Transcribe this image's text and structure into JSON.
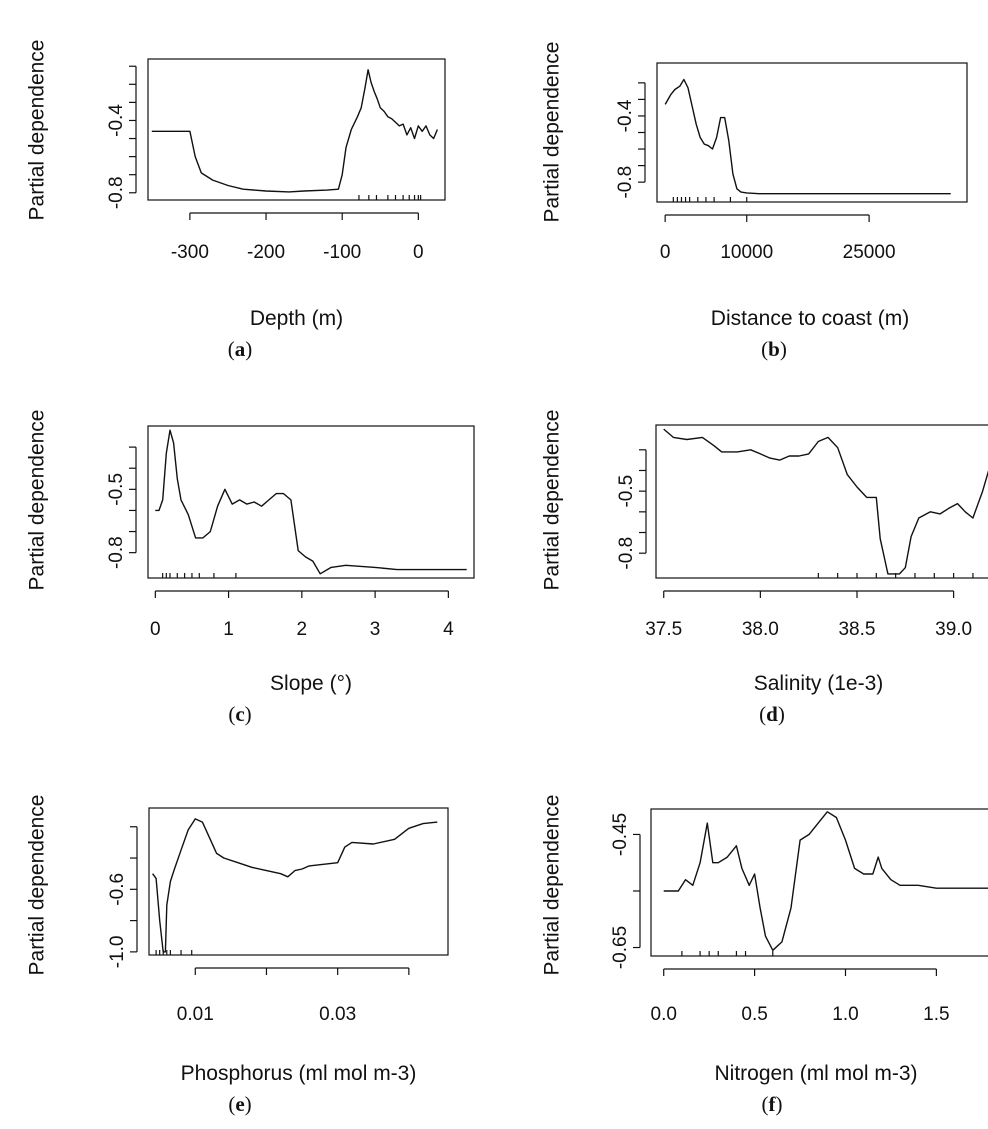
{
  "chart_data": [
    {
      "panel": "a",
      "type": "line",
      "xlabel": "Depth (m)",
      "ylabel": "Partial dependence",
      "xlim": [
        -355,
        35
      ],
      "ylim": [
        -0.84,
        -0.06
      ],
      "xticks": [
        -300,
        -200,
        -100,
        0
      ],
      "yticks": [
        -0.8,
        -0.7,
        -0.6,
        -0.5,
        -0.4,
        -0.3,
        -0.2,
        -0.1
      ],
      "ytick_labels": {
        "-0.8": "-0.8",
        "-0.4": "-0.4"
      },
      "rug": [
        -78,
        -65,
        -55,
        -40,
        -30,
        -20,
        -12,
        -5,
        0,
        3
      ],
      "x": [
        -350,
        -300,
        -293,
        -285,
        -270,
        -250,
        -230,
        -200,
        -170,
        -150,
        -120,
        -105,
        -100,
        -95,
        -88,
        -80,
        -75,
        -70,
        -66,
        -62,
        -58,
        -54,
        -50,
        -45,
        -40,
        -35,
        -30,
        -25,
        -20,
        -15,
        -10,
        -5,
        0,
        5,
        10,
        15,
        20,
        25
      ],
      "y": [
        -0.46,
        -0.46,
        -0.6,
        -0.69,
        -0.73,
        -0.76,
        -0.78,
        -0.79,
        -0.795,
        -0.79,
        -0.785,
        -0.78,
        -0.7,
        -0.55,
        -0.45,
        -0.38,
        -0.33,
        -0.22,
        -0.12,
        -0.19,
        -0.24,
        -0.28,
        -0.33,
        -0.35,
        -0.38,
        -0.39,
        -0.41,
        -0.43,
        -0.42,
        -0.48,
        -0.44,
        -0.5,
        -0.43,
        -0.46,
        -0.43,
        -0.48,
        -0.5,
        -0.45
      ]
    },
    {
      "panel": "b",
      "type": "line",
      "xlabel": "Distance to coast (m)",
      "ylabel": "Partial dependence",
      "xlim": [
        -1000,
        37000
      ],
      "ylim": [
        -0.92,
        -0.08
      ],
      "xticks": [
        0,
        10000,
        25000
      ],
      "yticks": [
        -0.8,
        -0.7,
        -0.6,
        -0.5,
        -0.4,
        -0.3,
        -0.2
      ],
      "ytick_labels": {
        "-0.8": "-0.8",
        "-0.4": "-0.4"
      },
      "rug": [
        1000,
        1500,
        2000,
        2500,
        3000,
        4000,
        5000,
        6000,
        8000,
        10000
      ],
      "x": [
        0,
        700,
        1200,
        1800,
        2300,
        2800,
        3300,
        3800,
        4300,
        4800,
        5300,
        5800,
        6300,
        6800,
        7300,
        7800,
        8300,
        8800,
        9300,
        10000,
        11500,
        13000,
        17000,
        22000,
        27000,
        32000,
        35000
      ],
      "y": [
        -0.33,
        -0.27,
        -0.24,
        -0.22,
        -0.18,
        -0.23,
        -0.34,
        -0.45,
        -0.53,
        -0.57,
        -0.58,
        -0.6,
        -0.53,
        -0.41,
        -0.41,
        -0.55,
        -0.75,
        -0.84,
        -0.86,
        -0.865,
        -0.87,
        -0.87,
        -0.87,
        -0.87,
        -0.87,
        -0.87,
        -0.87
      ]
    },
    {
      "panel": "c",
      "type": "line",
      "xlabel": "Slope (°)",
      "ylabel": "Partial dependence",
      "xlim": [
        -0.1,
        4.35
      ],
      "ylim": [
        -0.92,
        -0.2
      ],
      "xticks": [
        0,
        1,
        2,
        3,
        4
      ],
      "yticks": [
        -0.8,
        -0.7,
        -0.6,
        -0.5,
        -0.4,
        -0.3
      ],
      "ytick_labels": {
        "-0.8": "-0.8",
        "-0.5": "-0.5"
      },
      "rug": [
        0.1,
        0.15,
        0.2,
        0.3,
        0.4,
        0.5,
        0.6,
        0.8,
        1.1
      ],
      "x": [
        0,
        0.05,
        0.1,
        0.15,
        0.2,
        0.25,
        0.3,
        0.35,
        0.45,
        0.55,
        0.65,
        0.75,
        0.85,
        0.95,
        1.05,
        1.15,
        1.25,
        1.35,
        1.45,
        1.55,
        1.65,
        1.75,
        1.85,
        1.95,
        2.05,
        2.15,
        2.25,
        2.4,
        2.6,
        3.0,
        3.3,
        4.0,
        4.25
      ],
      "y": [
        -0.6,
        -0.6,
        -0.55,
        -0.33,
        -0.22,
        -0.28,
        -0.45,
        -0.55,
        -0.62,
        -0.73,
        -0.73,
        -0.7,
        -0.58,
        -0.5,
        -0.57,
        -0.55,
        -0.57,
        -0.56,
        -0.58,
        -0.55,
        -0.52,
        -0.52,
        -0.55,
        -0.79,
        -0.82,
        -0.84,
        -0.9,
        -0.87,
        -0.86,
        -0.87,
        -0.88,
        -0.88,
        -0.88
      ]
    },
    {
      "panel": "d",
      "type": "line",
      "xlabel": "Salinity (1e-3)",
      "ylabel": "Partial dependence",
      "xlim": [
        37.46,
        39.24
      ],
      "ylim": [
        -0.92,
        -0.18
      ],
      "xticks": [
        37.5,
        38.0,
        38.5,
        39.0
      ],
      "xtick_labels": [
        "37.5",
        "38.0",
        "38.5",
        "39.0"
      ],
      "yticks": [
        -0.8,
        -0.7,
        -0.6,
        -0.5,
        -0.4,
        -0.3
      ],
      "ytick_labels": {
        "-0.8": "-0.8",
        "-0.5": "-0.5"
      },
      "rug": [
        38.3,
        38.4,
        38.5,
        38.6,
        38.7,
        38.8,
        38.9,
        39.0,
        39.1
      ],
      "x": [
        37.5,
        37.55,
        37.62,
        37.7,
        37.76,
        37.8,
        37.88,
        37.95,
        38.0,
        38.05,
        38.1,
        38.15,
        38.2,
        38.25,
        38.3,
        38.35,
        38.4,
        38.45,
        38.5,
        38.55,
        38.6,
        38.62,
        38.66,
        38.72,
        38.75,
        38.78,
        38.82,
        38.88,
        38.93,
        38.98,
        39.02,
        39.06,
        39.1,
        39.15,
        39.2,
        39.24
      ],
      "y": [
        -0.2,
        -0.24,
        -0.25,
        -0.24,
        -0.28,
        -0.31,
        -0.31,
        -0.3,
        -0.32,
        -0.34,
        -0.35,
        -0.33,
        -0.33,
        -0.32,
        -0.26,
        -0.24,
        -0.29,
        -0.42,
        -0.48,
        -0.53,
        -0.53,
        -0.73,
        -0.9,
        -0.9,
        -0.87,
        -0.72,
        -0.63,
        -0.6,
        -0.61,
        -0.58,
        -0.56,
        -0.6,
        -0.63,
        -0.5,
        -0.34,
        -0.38
      ]
    },
    {
      "panel": "e",
      "type": "line",
      "xlabel": "Phosphorus (ml mol m-3)",
      "ylabel": "Partial dependence",
      "xlim": [
        0.0035,
        0.0455
      ],
      "ylim": [
        -1.02,
        -0.08
      ],
      "xticks": [
        0.01,
        0.02,
        0.03,
        0.04
      ],
      "xtick_labels": [
        "0.01",
        "",
        "0.03",
        ""
      ],
      "yticks": [
        -1.0,
        -0.8,
        -0.6,
        -0.4,
        -0.2
      ],
      "ytick_labels": {
        "-1.0": "-1.0",
        "-0.6": "-0.6"
      },
      "rug": [
        0.0045,
        0.005,
        0.0055,
        0.006,
        0.0065,
        0.008,
        0.0095
      ],
      "x": [
        0.004,
        0.0045,
        0.005,
        0.0055,
        0.0058,
        0.006,
        0.0065,
        0.007,
        0.008,
        0.009,
        0.01,
        0.011,
        0.012,
        0.013,
        0.014,
        0.016,
        0.018,
        0.02,
        0.022,
        0.023,
        0.024,
        0.025,
        0.026,
        0.028,
        0.03,
        0.031,
        0.032,
        0.035,
        0.038,
        0.04,
        0.042,
        0.044
      ],
      "y": [
        -0.5,
        -0.53,
        -0.8,
        -1.0,
        -1.0,
        -0.7,
        -0.55,
        -0.48,
        -0.35,
        -0.22,
        -0.15,
        -0.17,
        -0.27,
        -0.37,
        -0.4,
        -0.43,
        -0.46,
        -0.48,
        -0.5,
        -0.52,
        -0.48,
        -0.47,
        -0.45,
        -0.44,
        -0.43,
        -0.33,
        -0.3,
        -0.31,
        -0.28,
        -0.21,
        -0.18,
        -0.17
      ]
    },
    {
      "panel": "f",
      "type": "line",
      "xlabel": "Nitrogen (ml mol m-3)",
      "ylabel": "Partial dependence",
      "xlim": [
        -0.07,
        1.85
      ],
      "ylim": [
        -0.665,
        -0.405
      ],
      "xticks": [
        0.0,
        0.5,
        1.0,
        1.5
      ],
      "xtick_labels": [
        "0.0",
        "0.5",
        "1.0",
        "1.5"
      ],
      "yticks": [
        -0.65,
        -0.55,
        -0.45
      ],
      "ytick_labels": {
        "-0.65": "-0.65",
        "-0.45": "-0.45"
      },
      "rug": [
        0.1,
        0.2,
        0.25,
        0.3,
        0.4,
        0.45,
        0.6
      ],
      "x": [
        0.0,
        0.08,
        0.12,
        0.16,
        0.2,
        0.24,
        0.27,
        0.3,
        0.35,
        0.4,
        0.43,
        0.47,
        0.5,
        0.53,
        0.56,
        0.6,
        0.65,
        0.7,
        0.75,
        0.8,
        0.85,
        0.9,
        0.95,
        1.0,
        1.05,
        1.1,
        1.15,
        1.18,
        1.2,
        1.25,
        1.3,
        1.4,
        1.5,
        1.6,
        1.7,
        1.85
      ],
      "y": [
        -0.55,
        -0.55,
        -0.53,
        -0.54,
        -0.5,
        -0.43,
        -0.5,
        -0.5,
        -0.49,
        -0.47,
        -0.51,
        -0.54,
        -0.52,
        -0.58,
        -0.63,
        -0.655,
        -0.64,
        -0.58,
        -0.46,
        -0.45,
        -0.43,
        -0.41,
        -0.42,
        -0.46,
        -0.51,
        -0.52,
        -0.52,
        -0.49,
        -0.51,
        -0.53,
        -0.54,
        -0.54,
        -0.545,
        -0.545,
        -0.545,
        -0.545
      ]
    }
  ],
  "captions": [
    "a",
    "b",
    "c",
    "d",
    "e",
    "f"
  ],
  "colors": {
    "line": "#111111",
    "axis": "#111111",
    "background": "#ffffff"
  }
}
